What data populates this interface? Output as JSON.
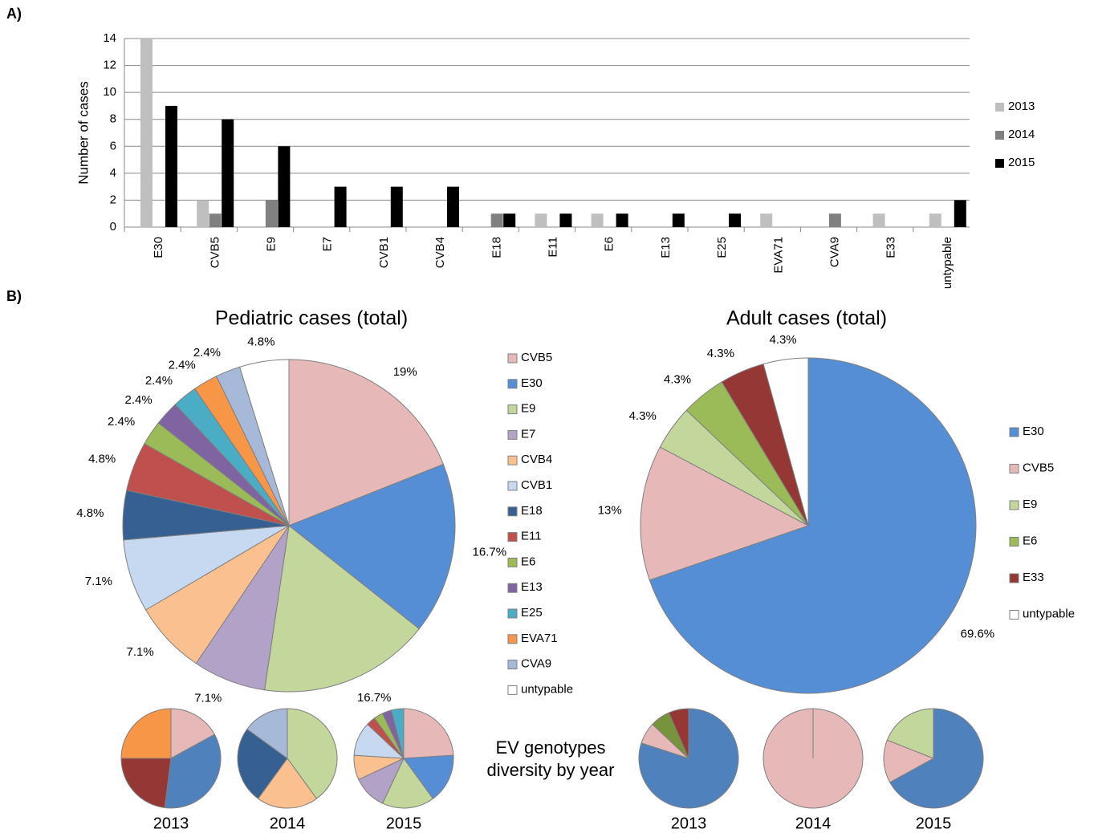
{
  "labels": {
    "a": "A)",
    "b": "B)",
    "diversity": "EV genotypes diversity by year"
  },
  "chart_data": [
    {
      "type": "bar",
      "y_label": "Number of cases",
      "categories": [
        "E30",
        "CVB5",
        "E9",
        "E7",
        "CVB1",
        "CVB4",
        "E18",
        "E11",
        "E6",
        "E13",
        "E25",
        "EVA71",
        "CVA9",
        "E33",
        "untypable"
      ],
      "series": [
        {
          "name": "2013",
          "color": "#bfbfbf",
          "values": [
            14,
            2,
            0,
            0,
            0,
            0,
            0,
            1,
            1,
            0,
            0,
            1,
            0,
            1,
            1
          ]
        },
        {
          "name": "2014",
          "color": "#808080",
          "values": [
            0,
            1,
            2,
            0,
            0,
            0,
            1,
            0,
            0,
            0,
            0,
            0,
            1,
            0,
            0
          ]
        },
        {
          "name": "2015",
          "color": "#000000",
          "values": [
            9,
            8,
            6,
            3,
            3,
            3,
            1,
            1,
            1,
            1,
            1,
            0,
            0,
            0,
            2
          ]
        }
      ],
      "ylim": [
        0,
        14
      ],
      "yticks": [
        0,
        2,
        4,
        6,
        8,
        10,
        12,
        14
      ],
      "grid": true,
      "legend": "right"
    },
    {
      "type": "pie",
      "title": "Pediatric cases (total)",
      "categories": [
        "CVB5",
        "E30",
        "E9",
        "E7",
        "CVB4",
        "CVB1",
        "E18",
        "E11",
        "E6",
        "E13",
        "E25",
        "EVA71",
        "CVA9",
        "untypable"
      ],
      "values": [
        19,
        16.7,
        16.7,
        7.1,
        7.1,
        7.1,
        4.8,
        4.8,
        2.4,
        2.4,
        2.4,
        2.4,
        2.4,
        4.8
      ],
      "value_labels": [
        "19%",
        "16.7%",
        "16.7%",
        "7.1%",
        "7.1%",
        "7.1%",
        "4.8%",
        "4.8%",
        "2.4%",
        "2.4%",
        "2.4%",
        "2.4%",
        "2.4%",
        "4.8%"
      ],
      "colors": [
        "#e6b9b8",
        "#558ed5",
        "#c3d69b",
        "#b3a2c7",
        "#fac090",
        "#c6d9f1",
        "#376092",
        "#c0504d",
        "#9bbb59",
        "#8064a2",
        "#4bacc6",
        "#f79646",
        "#a6b9d9",
        "#ffffff"
      ],
      "legend": "right"
    },
    {
      "type": "pie",
      "title": "Adult cases (total)",
      "categories": [
        "E30",
        "CVB5",
        "E9",
        "E6",
        "E33",
        "untypable"
      ],
      "values": [
        69.6,
        13,
        4.3,
        4.3,
        4.3,
        4.3
      ],
      "value_labels": [
        "69.6%",
        "13%",
        "4.3%",
        "4.3%",
        "4.3%",
        "4.3%"
      ],
      "colors": [
        "#558ed5",
        "#e6b9b8",
        "#c3d69b",
        "#9bbb59",
        "#953735",
        "#ffffff"
      ],
      "legend": "right"
    },
    {
      "type": "pie",
      "title": "2013",
      "values": [
        17,
        35,
        23,
        25
      ],
      "colors": [
        "#e6b9b8",
        "#4f81bd",
        "#953735",
        "#f79646"
      ]
    },
    {
      "type": "pie",
      "title": "2014",
      "values": [
        40,
        20,
        25,
        15
      ],
      "colors": [
        "#c3d69b",
        "#fac090",
        "#376092",
        "#a6b9d9"
      ]
    },
    {
      "type": "pie",
      "title": "2015",
      "values": [
        24,
        16,
        17,
        11,
        8,
        11,
        3,
        3,
        3,
        4
      ],
      "colors": [
        "#e6b9b8",
        "#558ed5",
        "#c3d69b",
        "#b3a2c7",
        "#fac090",
        "#c6d9f1",
        "#c0504d",
        "#9bbb59",
        "#8064a2",
        "#4bacc6"
      ]
    },
    {
      "type": "pie",
      "title": "2013",
      "values": [
        80,
        7,
        6.5,
        6.5
      ],
      "colors": [
        "#4f81bd",
        "#e6b9b8",
        "#77933c",
        "#953735"
      ]
    },
    {
      "type": "pie",
      "title": "2014",
      "values": [
        100
      ],
      "colors": [
        "#e6b9b8"
      ]
    },
    {
      "type": "pie",
      "title": "2015",
      "values": [
        67,
        14,
        19
      ],
      "colors": [
        "#4f81bd",
        "#e6b9b8",
        "#c3d69b"
      ]
    }
  ]
}
